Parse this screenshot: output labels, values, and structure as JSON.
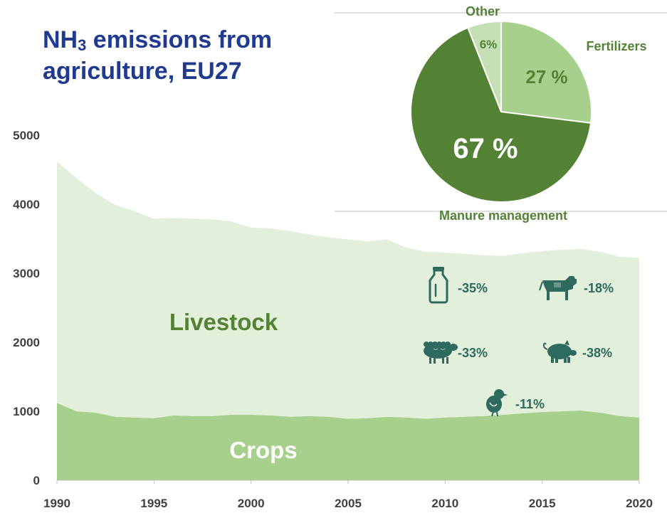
{
  "title": {
    "line1_prefix": "NH",
    "line1_sub": "3",
    "line1_suffix": " emissions from",
    "line2": "agriculture, EU27"
  },
  "chart_data": [
    {
      "type": "area",
      "stacked": true,
      "x": [
        1990,
        1991,
        1992,
        1993,
        1994,
        1995,
        1996,
        1997,
        1998,
        1999,
        2000,
        2001,
        2002,
        2003,
        2004,
        2005,
        2006,
        2007,
        2008,
        2009,
        2010,
        2011,
        2012,
        2013,
        2014,
        2015,
        2016,
        2017,
        2018,
        2019,
        2020
      ],
      "xticks": [
        1990,
        1995,
        2000,
        2005,
        2010,
        2015,
        2020
      ],
      "ylim": [
        0,
        5000
      ],
      "yticks": [
        0,
        1000,
        2000,
        3000,
        4000,
        5000
      ],
      "grid": false,
      "series": [
        {
          "name": "Crops",
          "color": "#a8d08d",
          "values": [
            1120,
            1000,
            980,
            920,
            910,
            900,
            940,
            930,
            930,
            950,
            950,
            940,
            920,
            930,
            920,
            890,
            900,
            920,
            910,
            890,
            910,
            920,
            930,
            950,
            970,
            990,
            1000,
            1010,
            980,
            930,
            910
          ]
        },
        {
          "name": "Livestock",
          "color": "#e2efda",
          "values": [
            3500,
            3380,
            3180,
            3070,
            2990,
            2890,
            2860,
            2860,
            2850,
            2800,
            2710,
            2710,
            2690,
            2630,
            2600,
            2600,
            2560,
            2570,
            2460,
            2420,
            2390,
            2360,
            2330,
            2300,
            2320,
            2330,
            2340,
            2340,
            2330,
            2310,
            2310
          ]
        }
      ],
      "livestock_changes": [
        {
          "icon": "milk-bottle-icon",
          "label": "-35%"
        },
        {
          "icon": "cow-icon",
          "label": "-18%"
        },
        {
          "icon": "sheep-icon",
          "label": "-33%"
        },
        {
          "icon": "pig-icon",
          "label": "-38%"
        },
        {
          "icon": "chick-icon",
          "label": "-11%"
        }
      ]
    },
    {
      "type": "pie",
      "slices": [
        {
          "name": "Fertilizers",
          "value": 27,
          "label": "27 %",
          "color": "#a8d08d"
        },
        {
          "name": "Manure management",
          "value": 67,
          "label": "67 %",
          "color": "#548235"
        },
        {
          "name": "Other",
          "value": 6,
          "label": "6%",
          "color": "#c5e0b4"
        }
      ]
    }
  ],
  "colors": {
    "title": "#1f3a8f",
    "axis_text": "#404040",
    "livestock_text": "#548235",
    "icon": "#2e6b5e",
    "pie_label": "#548235"
  }
}
